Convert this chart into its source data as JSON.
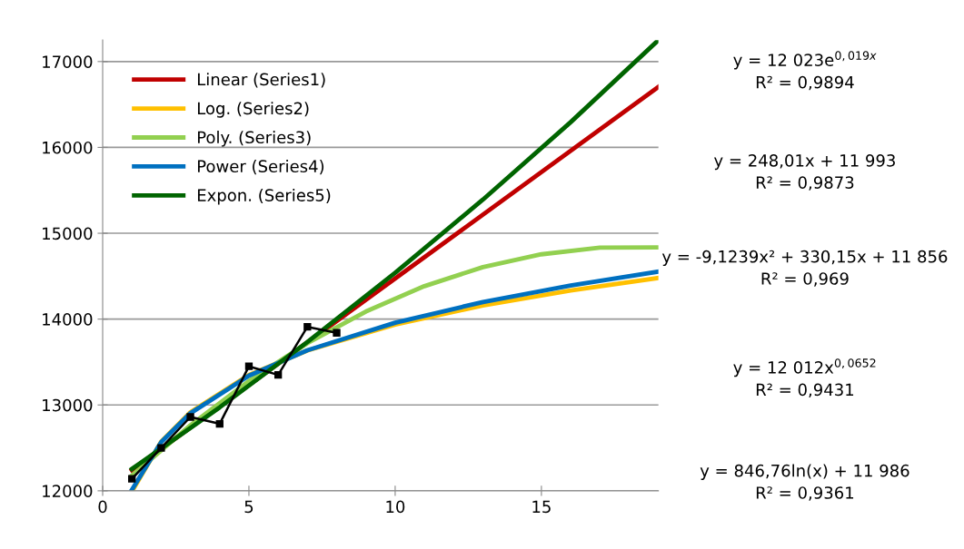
{
  "chart_data": {
    "type": "line",
    "xlim": [
      0,
      19
    ],
    "ylim": [
      12000,
      17250
    ],
    "xticks": [
      0,
      5,
      10,
      15
    ],
    "yticks": [
      12000,
      13000,
      14000,
      15000,
      16000,
      17000
    ],
    "grid": "y",
    "legend": "top left",
    "series": [
      {
        "color": "#000000",
        "marker": "square",
        "x": [
          1,
          2,
          3,
          4,
          5,
          6,
          7,
          8
        ],
        "values": [
          12140,
          12500,
          12860,
          12780,
          13450,
          13350,
          13910,
          13840
        ]
      },
      {
        "name": "Linear (Series1)",
        "color": "#c00000",
        "marker": "none",
        "x": [
          1,
          19
        ],
        "values": [
          12241,
          16705
        ]
      },
      {
        "name": "Log. (Series2)",
        "color": "#ffc000",
        "marker": "none",
        "x": [
          1.02,
          2,
          3,
          5,
          7,
          10,
          13,
          16,
          19
        ],
        "values": [
          12003,
          12573,
          12916,
          13349,
          13634,
          13936,
          14158,
          14334,
          14479
        ]
      },
      {
        "name": "Poly. (Series3)",
        "color": "#92d050",
        "marker": "none",
        "x": [
          1,
          3,
          5,
          7,
          9,
          11,
          13,
          15,
          17,
          19
        ],
        "values": [
          12177,
          12764,
          13279,
          13720,
          14088,
          14384,
          14606,
          14755,
          14832,
          14835
        ]
      },
      {
        "name": "Power (Series4)",
        "color": "#0070c0",
        "marker": "none",
        "x": [
          1,
          2,
          3,
          5,
          7,
          10,
          13,
          16,
          19
        ],
        "values": [
          12012,
          12567,
          12904,
          13341,
          13637,
          13958,
          14199,
          14392,
          14554
        ]
      },
      {
        "name": "Expon. (Series5)",
        "color": "#006400",
        "marker": "none",
        "x": [
          1,
          4,
          7,
          10,
          13,
          16,
          19
        ],
        "values": [
          12254,
          12972,
          13733,
          14539,
          15392,
          16294,
          17250
        ]
      }
    ],
    "annotations": [
      "y = 12 023e$^{0,019x}$\nR² = 0,9894",
      "y = 248,01x + 11 993\nR² = 0,9873",
      "y = -9,1239x² + 330,15x + 11 856\nR² = 0,969",
      "y = 12 012x$^{0,0652}$\nR² = 0,9431",
      "y = 846,76ln(x) + 11 986\nR² = 0,9361"
    ]
  }
}
